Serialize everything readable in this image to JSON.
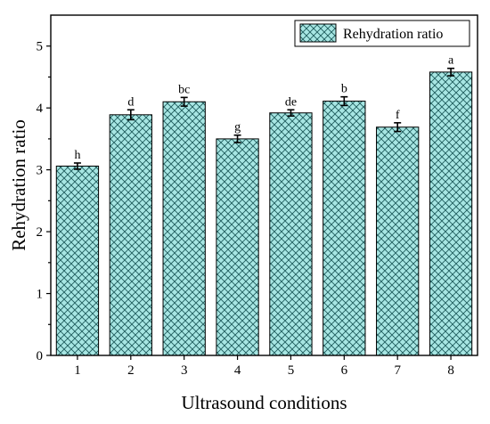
{
  "chart_data": {
    "type": "bar",
    "xlabel": "Ultrasound conditions",
    "ylabel": "Rehydration ratio",
    "categories": [
      "1",
      "2",
      "3",
      "4",
      "5",
      "6",
      "7",
      "8"
    ],
    "series": [
      {
        "name": "Rehydration ratio",
        "values": [
          3.06,
          3.89,
          4.1,
          3.5,
          3.92,
          4.11,
          3.69,
          4.58
        ],
        "errors": [
          0.05,
          0.08,
          0.07,
          0.06,
          0.05,
          0.07,
          0.07,
          0.06
        ],
        "labels": [
          "h",
          "d",
          "bc",
          "g",
          "de",
          "b",
          "f",
          "a"
        ]
      }
    ],
    "ylim": [
      0,
      5.5
    ],
    "yticks": [
      0,
      1,
      2,
      3,
      4,
      5
    ],
    "grid": false,
    "legend_position": "top-right",
    "colors": {
      "bar_fill": "#a7e6e3",
      "hatch": "#1e5c5c",
      "outline": "#000000"
    }
  }
}
